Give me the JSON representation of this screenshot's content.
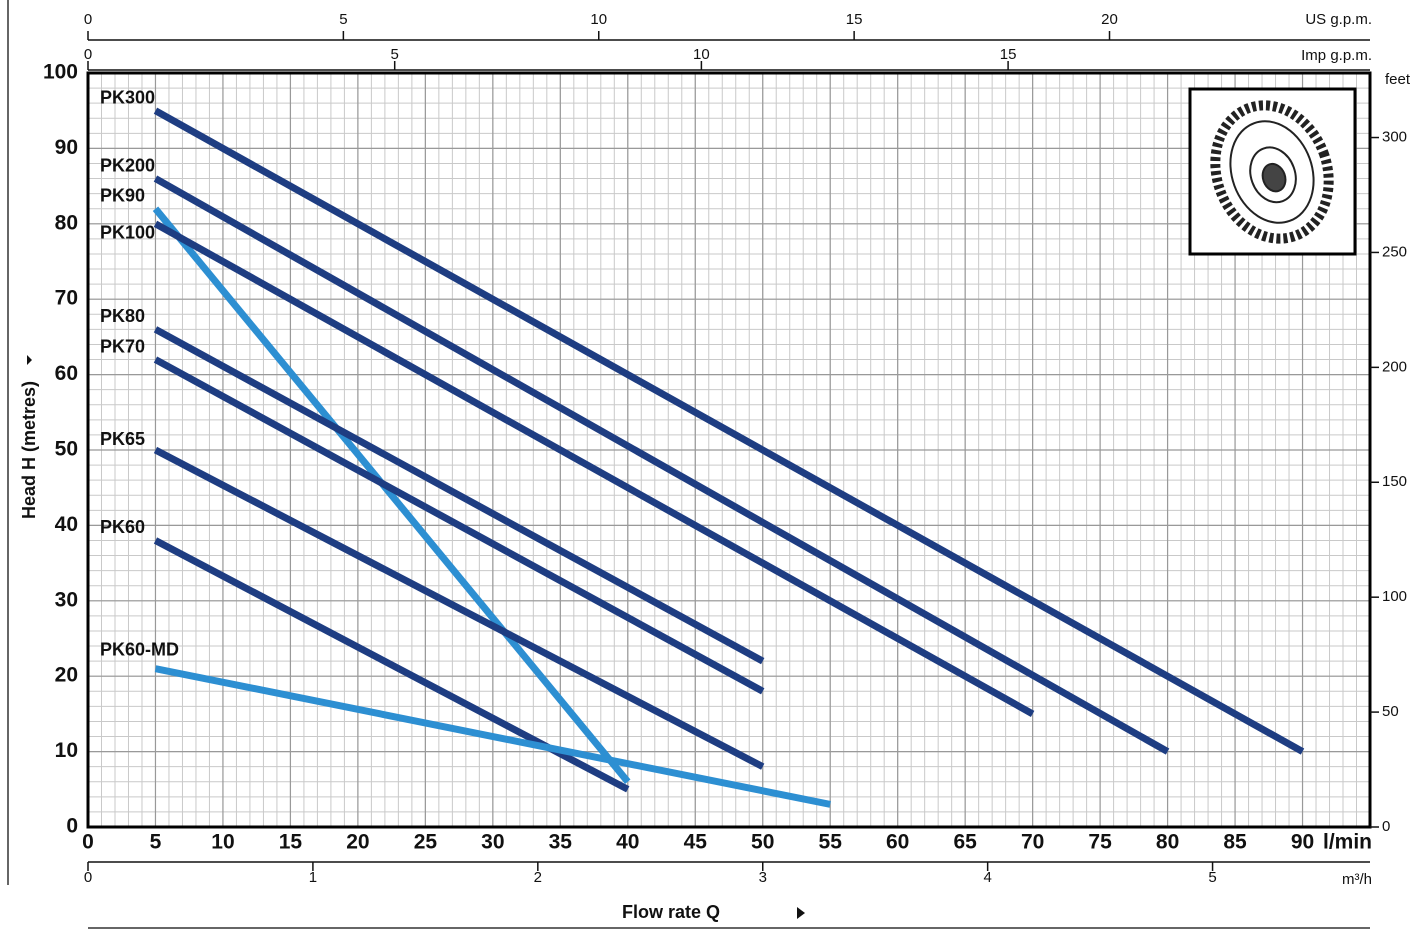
{
  "chart_data": {
    "type": "line",
    "xlabel": "Flow rate  Q",
    "ylabel": "Head H  (metres)",
    "xunit": "l/min",
    "xlim": [
      0,
      95
    ],
    "xticks": [
      0,
      5,
      10,
      15,
      20,
      25,
      30,
      35,
      40,
      45,
      50,
      55,
      60,
      65,
      70,
      75,
      80,
      85,
      90
    ],
    "ylim": [
      0,
      100
    ],
    "yticks": [
      0,
      10,
      20,
      30,
      40,
      50,
      60,
      70,
      80,
      90,
      100
    ],
    "grid": true,
    "xminor": 1,
    "yminor": 2,
    "top_axis_us": {
      "label": "US g.p.m.",
      "lim": [
        0,
        25.1
      ],
      "ticks": [
        0,
        5,
        10,
        15,
        20
      ]
    },
    "top_axis_imp": {
      "label": "Imp g.p.m.",
      "lim": [
        0,
        20.9
      ],
      "ticks": [
        0,
        5,
        10,
        15
      ]
    },
    "bottom_axis_m3h": {
      "label": "m³/h",
      "lim": [
        0,
        5.7
      ],
      "ticks": [
        0,
        1,
        2,
        3,
        4,
        5
      ]
    },
    "right_axis_feet": {
      "label": "feet",
      "lim": [
        0,
        328.08
      ],
      "ticks": [
        0,
        50,
        100,
        150,
        200,
        250,
        300
      ]
    },
    "series": [
      {
        "name": "PK300",
        "color": "#1e3d82",
        "x": [
          5,
          90
        ],
        "values": [
          95,
          10
        ]
      },
      {
        "name": "PK200",
        "color": "#1e3d82",
        "x": [
          5,
          80
        ],
        "values": [
          86,
          10
        ]
      },
      {
        "name": "PK90",
        "color": "#2d8fd2",
        "x": [
          5,
          40
        ],
        "values": [
          82,
          6
        ]
      },
      {
        "name": "PK100",
        "color": "#1e3d82",
        "x": [
          5,
          70
        ],
        "values": [
          80,
          15
        ]
      },
      {
        "name": "PK80",
        "color": "#1e3d82",
        "x": [
          5,
          50
        ],
        "values": [
          66,
          22
        ]
      },
      {
        "name": "PK70",
        "color": "#1e3d82",
        "x": [
          5,
          50
        ],
        "values": [
          62,
          18
        ]
      },
      {
        "name": "PK65",
        "color": "#1e3d82",
        "x": [
          5,
          50
        ],
        "values": [
          50,
          8
        ]
      },
      {
        "name": "PK60",
        "color": "#1e3d82",
        "x": [
          5,
          40
        ],
        "values": [
          38,
          5
        ]
      },
      {
        "name": "PK60-MD",
        "color": "#2d8fd2",
        "x": [
          5,
          55
        ],
        "values": [
          21,
          3
        ]
      }
    ]
  }
}
